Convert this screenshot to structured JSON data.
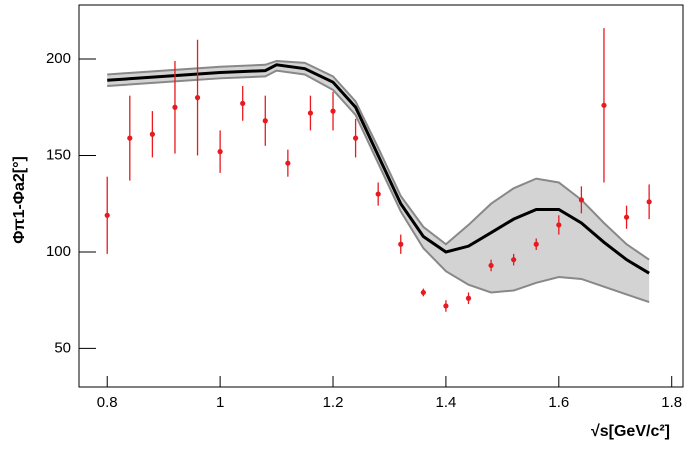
{
  "chart_data": {
    "type": "scatter",
    "x_label": "√s[GeV/c²]",
    "y_label": "Φπ1-Φa2[°]",
    "xlim": [
      0.75,
      1.82
    ],
    "ylim": [
      30,
      228
    ],
    "xticks": [
      0.8,
      1,
      1.2,
      1.4,
      1.6,
      1.8
    ],
    "yticks": [
      50,
      100,
      150,
      200
    ],
    "points": {
      "color": "#e8191f",
      "x": [
        0.8,
        0.84,
        0.88,
        0.92,
        0.96,
        1.0,
        1.04,
        1.08,
        1.12,
        1.16,
        1.2,
        1.24,
        1.28,
        1.32,
        1.36,
        1.4,
        1.44,
        1.48,
        1.52,
        1.56,
        1.6,
        1.64,
        1.68,
        1.72,
        1.76
      ],
      "values": [
        119,
        159,
        161,
        175,
        180,
        152,
        177,
        168,
        146,
        172,
        173,
        159,
        130,
        104,
        79,
        72,
        76,
        93,
        96,
        104,
        114,
        127,
        176,
        118,
        126
      ],
      "errors": [
        20,
        22,
        12,
        24,
        30,
        11,
        9,
        13,
        7,
        9,
        10,
        10,
        6,
        5,
        2,
        3,
        3,
        3,
        3,
        3,
        5,
        7,
        40,
        6,
        9
      ]
    },
    "model": {
      "color": "#000000",
      "band_color": "#d3d3d3",
      "band_edge_color": "#888888",
      "x": [
        0.8,
        0.9,
        1.0,
        1.08,
        1.1,
        1.15,
        1.2,
        1.24,
        1.28,
        1.32,
        1.36,
        1.4,
        1.44,
        1.48,
        1.52,
        1.56,
        1.6,
        1.64,
        1.68,
        1.72,
        1.76
      ],
      "values": [
        189,
        191,
        193,
        194,
        197,
        195,
        188,
        175,
        150,
        125,
        108,
        100,
        103,
        110,
        117,
        122,
        122,
        115,
        105,
        96,
        89
      ],
      "lower": [
        186,
        188,
        190,
        191,
        194,
        192,
        184,
        171,
        146,
        121,
        102,
        90,
        83,
        79,
        80,
        84,
        87,
        86,
        82,
        78,
        74
      ],
      "upper": [
        192,
        194,
        196,
        197,
        199,
        198,
        191,
        178,
        154,
        129,
        113,
        104,
        114,
        125,
        133,
        138,
        136,
        127,
        115,
        104,
        96
      ]
    }
  }
}
